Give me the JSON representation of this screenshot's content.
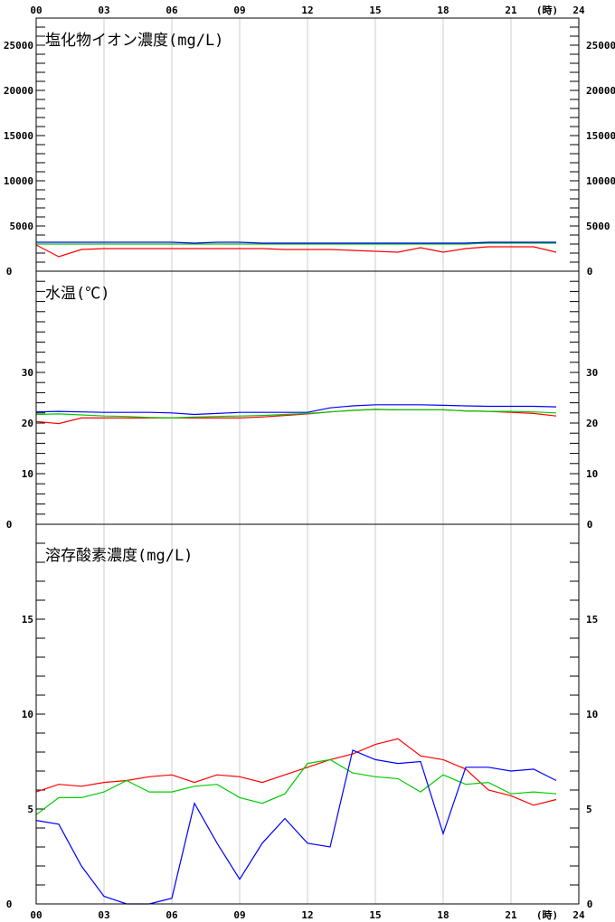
{
  "chart_data": [
    {
      "type": "line",
      "title": "塩化物イオン濃度(mg/L)",
      "ylim": [
        0,
        28000
      ],
      "y_ticks": [
        0,
        5000,
        10000,
        15000,
        20000,
        25000
      ],
      "series": [
        {
          "color": "#ff0000",
          "values": [
            2900,
            1600,
            2400,
            2500,
            2500,
            2500,
            2500,
            2500,
            2500,
            2500,
            2500,
            2400,
            2400,
            2400,
            2300,
            2200,
            2100,
            2600,
            2100,
            2500,
            2700,
            2700,
            2700,
            2100
          ]
        },
        {
          "color": "#00cc00",
          "values": [
            3000,
            3000,
            3000,
            3000,
            3000,
            3000,
            3000,
            3000,
            3000,
            3000,
            3000,
            3000,
            3000,
            3000,
            3000,
            3000,
            3000,
            3000,
            3000,
            3000,
            3100,
            3100,
            3100,
            3100
          ]
        },
        {
          "color": "#0000ff",
          "values": [
            3200,
            3200,
            3200,
            3200,
            3200,
            3200,
            3200,
            3100,
            3200,
            3200,
            3100,
            3100,
            3100,
            3100,
            3100,
            3100,
            3100,
            3100,
            3100,
            3100,
            3200,
            3200,
            3200,
            3200
          ]
        }
      ]
    },
    {
      "type": "line",
      "title": "水温(℃)",
      "ylim": [
        0,
        50
      ],
      "y_ticks": [
        0,
        10,
        20,
        30
      ],
      "series": [
        {
          "color": "#ff0000",
          "values": [
            20.3,
            19.9,
            21.0,
            21.0,
            21.0,
            21.0,
            21.0,
            21.0,
            21.0,
            21.0,
            21.2,
            21.5,
            21.8,
            22.2,
            22.5,
            22.7,
            22.6,
            22.6,
            22.6,
            22.4,
            22.3,
            22.1,
            21.9,
            21.4
          ]
        },
        {
          "color": "#00cc00",
          "values": [
            21.7,
            21.8,
            21.6,
            21.4,
            21.3,
            21.1,
            21.0,
            21.2,
            21.3,
            21.4,
            21.5,
            21.7,
            21.9,
            22.2,
            22.5,
            22.7,
            22.6,
            22.6,
            22.6,
            22.4,
            22.3,
            22.3,
            22.2,
            22.0
          ]
        },
        {
          "color": "#0000ff",
          "values": [
            22.2,
            22.3,
            22.2,
            22.1,
            22.1,
            22.1,
            22.0,
            21.7,
            21.9,
            22.1,
            22.1,
            22.1,
            22.1,
            23.0,
            23.4,
            23.6,
            23.6,
            23.6,
            23.5,
            23.4,
            23.3,
            23.3,
            23.3,
            23.2
          ]
        }
      ]
    },
    {
      "type": "line",
      "title": "溶存酸素濃度(mg/L)",
      "ylim": [
        0,
        20
      ],
      "y_ticks": [
        0,
        5,
        10,
        15
      ],
      "series": [
        {
          "color": "#ff0000",
          "values": [
            5.9,
            6.3,
            6.2,
            6.4,
            6.5,
            6.7,
            6.8,
            6.4,
            6.8,
            6.7,
            6.4,
            6.8,
            7.2,
            7.6,
            7.9,
            8.4,
            8.7,
            7.8,
            7.6,
            7.1,
            6.0,
            5.7,
            5.2,
            5.5
          ]
        },
        {
          "color": "#00cc00",
          "values": [
            4.7,
            5.6,
            5.6,
            5.9,
            6.5,
            5.9,
            5.9,
            6.2,
            6.3,
            5.6,
            5.3,
            5.8,
            7.4,
            7.6,
            6.9,
            6.7,
            6.6,
            5.9,
            6.8,
            6.3,
            6.4,
            5.8,
            5.9,
            5.8
          ]
        },
        {
          "color": "#0000ff",
          "values": [
            4.4,
            4.2,
            2.0,
            0.4,
            0.0,
            0.0,
            0.3,
            5.3,
            3.2,
            1.3,
            3.2,
            4.5,
            3.2,
            3.0,
            8.1,
            7.6,
            7.4,
            7.5,
            3.7,
            7.2,
            7.2,
            7.0,
            7.1,
            6.5
          ]
        }
      ]
    }
  ],
  "x_axis": {
    "tick_labels": [
      "00",
      "03",
      "06",
      "09",
      "12",
      "15",
      "18",
      "21",
      "24"
    ],
    "unit": "(時)",
    "xlim": [
      0,
      24
    ]
  },
  "colors": {
    "frame": "#000000",
    "grid": "#cccccc",
    "background": "#ffffff"
  }
}
